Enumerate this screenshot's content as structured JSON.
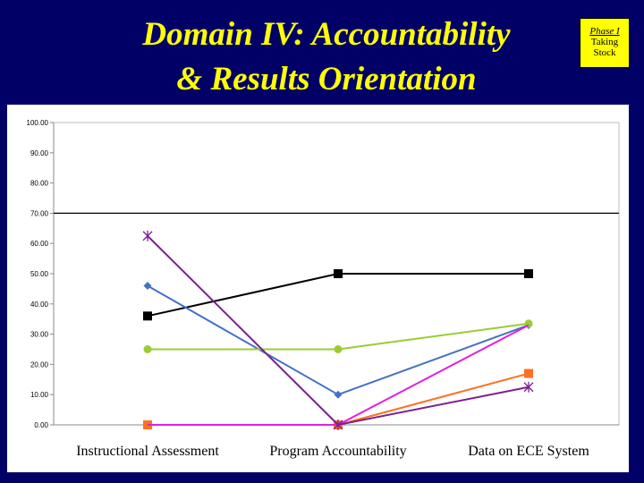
{
  "slide": {
    "title_line1": "Domain IV: Accountability",
    "title_line2": "& Results Orientation",
    "badge_line1": "Phase I",
    "badge_line2": "Taking",
    "badge_line3": "Stock"
  },
  "colors": {
    "background": "#000066",
    "title": "#ffff00",
    "badge": "#ffff00"
  },
  "chart_data": {
    "type": "line",
    "categories": [
      "Instructional Assessment",
      "Program Accountability",
      "Data on ECE System"
    ],
    "ylim": [
      0,
      100
    ],
    "yticks": [
      "0.00",
      "10.00",
      "20.00",
      "30.00",
      "40.00",
      "50.00",
      "60.00",
      "70.00",
      "80.00",
      "90.00",
      "100.00"
    ],
    "reference_line": 70,
    "grid": false,
    "legend": "none",
    "series": [
      {
        "values": [
          36,
          50,
          50
        ],
        "color": "#000000",
        "marker": "square"
      },
      {
        "values": [
          46,
          10,
          33
        ],
        "color": "#4472c4",
        "marker": "diamond"
      },
      {
        "values": [
          25,
          25,
          33.5
        ],
        "color": "#9acd32",
        "marker": "circle"
      },
      {
        "values": [
          0,
          0,
          17
        ],
        "color": "#ff7020",
        "marker": "square"
      },
      {
        "values": [
          0,
          0,
          33
        ],
        "color": "#e020e0",
        "marker": "none"
      },
      {
        "values": [
          62.5,
          0,
          12.5
        ],
        "color": "#7b2090",
        "marker": "star"
      }
    ]
  }
}
